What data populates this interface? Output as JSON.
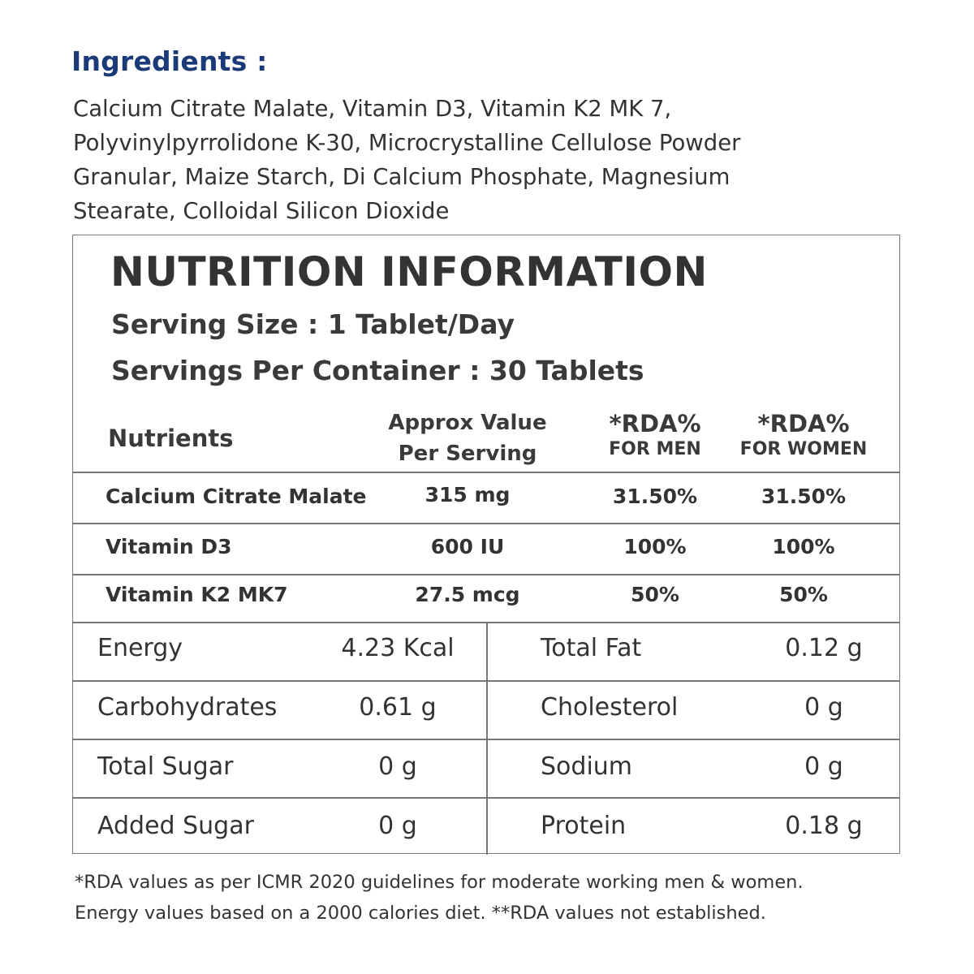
{
  "ingredients": {
    "title": "Ingredients :",
    "lines": [
      "Calcium Citrate Malate, Vitamin D3, Vitamin K2 MK 7,",
      "Polyvinylpyrrolidone K-30, Microcrystalline Cellulose Powder",
      "Granular, Maize Starch, Di Calcium Phosphate, Magnesium",
      "Stearate, Colloidal Silicon Dioxide"
    ]
  },
  "nutrition": {
    "title": "NUTRITION INFORMATION",
    "serving_size": "Serving Size : 1 Tablet/Day",
    "servings_per_container": "Servings Per Container : 30 Tablets",
    "headers": {
      "nutrients": "Nutrients",
      "approx_line1": "Approx Value",
      "approx_line2": "Per Serving",
      "rda_men_big": "*RDA%",
      "rda_men_small": "FOR MEN",
      "rda_women_big": "*RDA%",
      "rda_women_small": "FOR WOMEN"
    },
    "rows": [
      {
        "name": "Calcium Citrate Malate",
        "value": "315 mg",
        "rda_men": "31.50%",
        "rda_women": "31.50%"
      },
      {
        "name": "Vitamin D3",
        "value": "600 IU",
        "rda_men": "100%",
        "rda_women": "100%"
      },
      {
        "name": "Vitamin K2 MK7",
        "value": "27.5 mcg",
        "rda_men": "50%",
        "rda_women": "50%"
      }
    ],
    "facts": [
      {
        "left_label": "Energy",
        "left_value": "4.23 Kcal",
        "right_label": "Total Fat",
        "right_value": "0.12 g"
      },
      {
        "left_label": "Carbohydrates",
        "left_value": "0.61 g",
        "right_label": "Cholesterol",
        "right_value": "0 g"
      },
      {
        "left_label": "Total Sugar",
        "left_value": "0 g",
        "right_label": "Sodium",
        "right_value": "0 g"
      },
      {
        "left_label": "Added Sugar",
        "left_value": "0 g",
        "right_label": "Protein",
        "right_value": "0.18 g"
      }
    ]
  },
  "footnote": {
    "line1": "*RDA values as per ICMR 2020 guidelines for moderate working men & women.",
    "line2": "Energy values based on a 2000 calories diet. **RDA values not established."
  },
  "colors": {
    "heading_blue": "#1a3a78",
    "text": "#333333",
    "border": "#777777"
  }
}
